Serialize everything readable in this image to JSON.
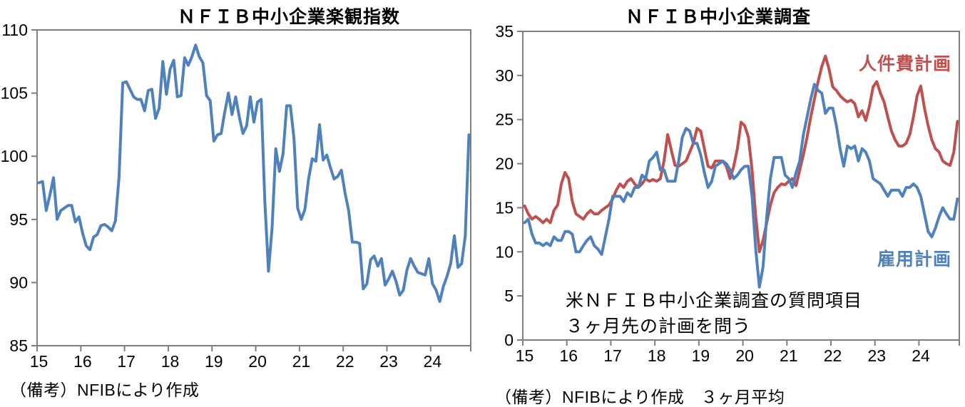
{
  "chart_data": [
    {
      "type": "line",
      "title": "ＮＦＩＢ中小企業楽観指数",
      "note": "（備考）NFIBにより作成",
      "x_start": "2015-01",
      "x_end": "2024-11",
      "x_frequency": "monthly",
      "x_tick_labels": [
        "15",
        "16",
        "17",
        "18",
        "19",
        "20",
        "21",
        "22",
        "23",
        "24"
      ],
      "ylim": [
        85,
        110
      ],
      "y_ticks": [
        85,
        90,
        95,
        100,
        105,
        110
      ],
      "grid": false,
      "legend_position": "none",
      "axis_color": "#7f7f7f",
      "series": [
        {
          "name": "ＮＦＩＢ中小企業楽観指数",
          "color": "#4F81BD",
          "values": [
            97.9,
            98.0,
            95.7,
            96.9,
            98.3,
            95.0,
            95.7,
            95.9,
            96.1,
            96.1,
            94.8,
            95.2,
            93.9,
            92.9,
            92.6,
            93.6,
            93.8,
            94.5,
            94.6,
            94.4,
            94.1,
            94.9,
            98.4,
            105.8,
            105.9,
            105.3,
            104.7,
            104.5,
            104.5,
            103.6,
            105.2,
            105.3,
            103.0,
            103.8,
            107.5,
            104.9,
            106.9,
            107.6,
            104.7,
            104.8,
            107.8,
            107.2,
            107.9,
            108.8,
            107.9,
            107.4,
            104.8,
            104.4,
            101.2,
            101.7,
            101.8,
            103.5,
            105.0,
            103.3,
            104.7,
            103.1,
            101.8,
            102.4,
            104.7,
            102.7,
            104.3,
            104.5,
            96.4,
            90.9,
            94.4,
            100.6,
            98.8,
            100.2,
            104.0,
            104.0,
            101.4,
            95.9,
            95.0,
            95.8,
            98.2,
            99.8,
            99.6,
            102.5,
            99.7,
            100.1,
            99.1,
            98.2,
            98.4,
            98.9,
            97.1,
            95.7,
            93.2,
            93.2,
            93.1,
            89.5,
            89.9,
            91.8,
            92.1,
            91.3,
            91.9,
            89.8,
            90.3,
            90.9,
            90.1,
            89.0,
            89.4,
            91.0,
            91.9,
            91.3,
            90.8,
            90.7,
            90.6,
            91.9,
            89.9,
            89.4,
            88.5,
            89.7,
            90.5,
            91.5,
            93.7,
            91.2,
            91.5,
            93.7,
            101.7
          ]
        }
      ]
    },
    {
      "type": "line",
      "title": "ＮＦＩＢ中小企業調査",
      "note": "（備考）NFIBにより作成　３ヶ月平均",
      "annotation": {
        "lines": [
          "米ＮＦＩＢ中小企業調査の質問項目",
          "３ヶ月先の計画を問う"
        ]
      },
      "x_start": "2015-01",
      "x_end": "2024-11",
      "x_frequency": "monthly",
      "x_tick_labels": [
        "15",
        "16",
        "17",
        "18",
        "19",
        "20",
        "21",
        "22",
        "23",
        "24"
      ],
      "ylim": [
        0,
        35
      ],
      "y_ticks": [
        0,
        5,
        10,
        15,
        20,
        25,
        30,
        35
      ],
      "grid": false,
      "legend_position": "inline-labels",
      "axis_color": "#7f7f7f",
      "series": [
        {
          "name": "人件費計画",
          "color": "#C0504D",
          "values": [
            15.2,
            14.3,
            13.7,
            14.0,
            13.7,
            13.3,
            13.7,
            13.3,
            14.7,
            15.3,
            17.7,
            19.0,
            18.3,
            15.7,
            14.3,
            14.0,
            13.7,
            14.3,
            14.7,
            14.3,
            14.3,
            14.7,
            15.0,
            15.3,
            16.0,
            17.0,
            17.7,
            17.3,
            18.0,
            18.3,
            17.7,
            17.3,
            17.7,
            18.3,
            18.0,
            18.2,
            18.0,
            18.3,
            20.3,
            23.3,
            21.5,
            19.8,
            19.7,
            20.0,
            20.3,
            21.3,
            22.3,
            24.0,
            23.7,
            21.7,
            19.7,
            19.5,
            20.3,
            20.3,
            20.3,
            19.7,
            18.3,
            19.7,
            21.7,
            24.7,
            24.3,
            23.0,
            19.3,
            14.0,
            10.0,
            11.3,
            13.3,
            15.3,
            16.7,
            17.3,
            17.7,
            17.6,
            18.0,
            18.3,
            17.5,
            19.3,
            21.0,
            23.0,
            25.3,
            27.3,
            29.3,
            31.0,
            32.2,
            30.7,
            28.7,
            28.3,
            27.7,
            27.3,
            27.0,
            27.2,
            26.8,
            25.3,
            26.0,
            24.9,
            26.5,
            28.7,
            29.3,
            28.0,
            27.0,
            25.3,
            23.7,
            22.7,
            22.0,
            22.0,
            22.3,
            23.3,
            25.3,
            27.7,
            28.8,
            26.3,
            24.3,
            22.7,
            21.7,
            21.3,
            20.3,
            20.0,
            19.8,
            21.3,
            24.8
          ]
        },
        {
          "name": "雇用計画",
          "color": "#4F81BD",
          "values": [
            13.3,
            13.7,
            12.0,
            11.0,
            11.0,
            10.7,
            11.0,
            10.7,
            11.7,
            11.3,
            11.3,
            12.3,
            12.3,
            12.0,
            10.0,
            10.0,
            10.7,
            11.3,
            11.7,
            10.7,
            10.3,
            9.7,
            11.7,
            13.7,
            16.3,
            16.3,
            16.3,
            15.7,
            16.7,
            16.3,
            17.3,
            17.3,
            18.7,
            18.3,
            20.3,
            20.7,
            21.3,
            19.3,
            19.3,
            18.0,
            18.0,
            18.0,
            20.3,
            23.0,
            24.0,
            23.7,
            22.3,
            22.3,
            21.0,
            19.0,
            17.3,
            18.0,
            19.7,
            20.0,
            20.3,
            20.0,
            19.3,
            18.3,
            18.7,
            19.3,
            19.7,
            19.7,
            16.3,
            10.3,
            6.0,
            8.3,
            14.0,
            18.3,
            20.7,
            20.7,
            20.7,
            18.7,
            18.3,
            17.3,
            19.0,
            20.3,
            23.3,
            25.3,
            27.3,
            29.0,
            28.3,
            28.0,
            25.7,
            26.3,
            26.3,
            24.3,
            21.7,
            19.7,
            22.0,
            21.7,
            22.0,
            20.3,
            21.7,
            21.3,
            20.3,
            18.3,
            18.0,
            17.7,
            17.0,
            16.3,
            17.0,
            17.0,
            17.0,
            16.3,
            17.3,
            17.3,
            17.7,
            17.3,
            16.3,
            14.3,
            12.3,
            11.7,
            12.7,
            14.0,
            15.0,
            14.3,
            13.7,
            13.7,
            16.0
          ]
        }
      ]
    }
  ]
}
